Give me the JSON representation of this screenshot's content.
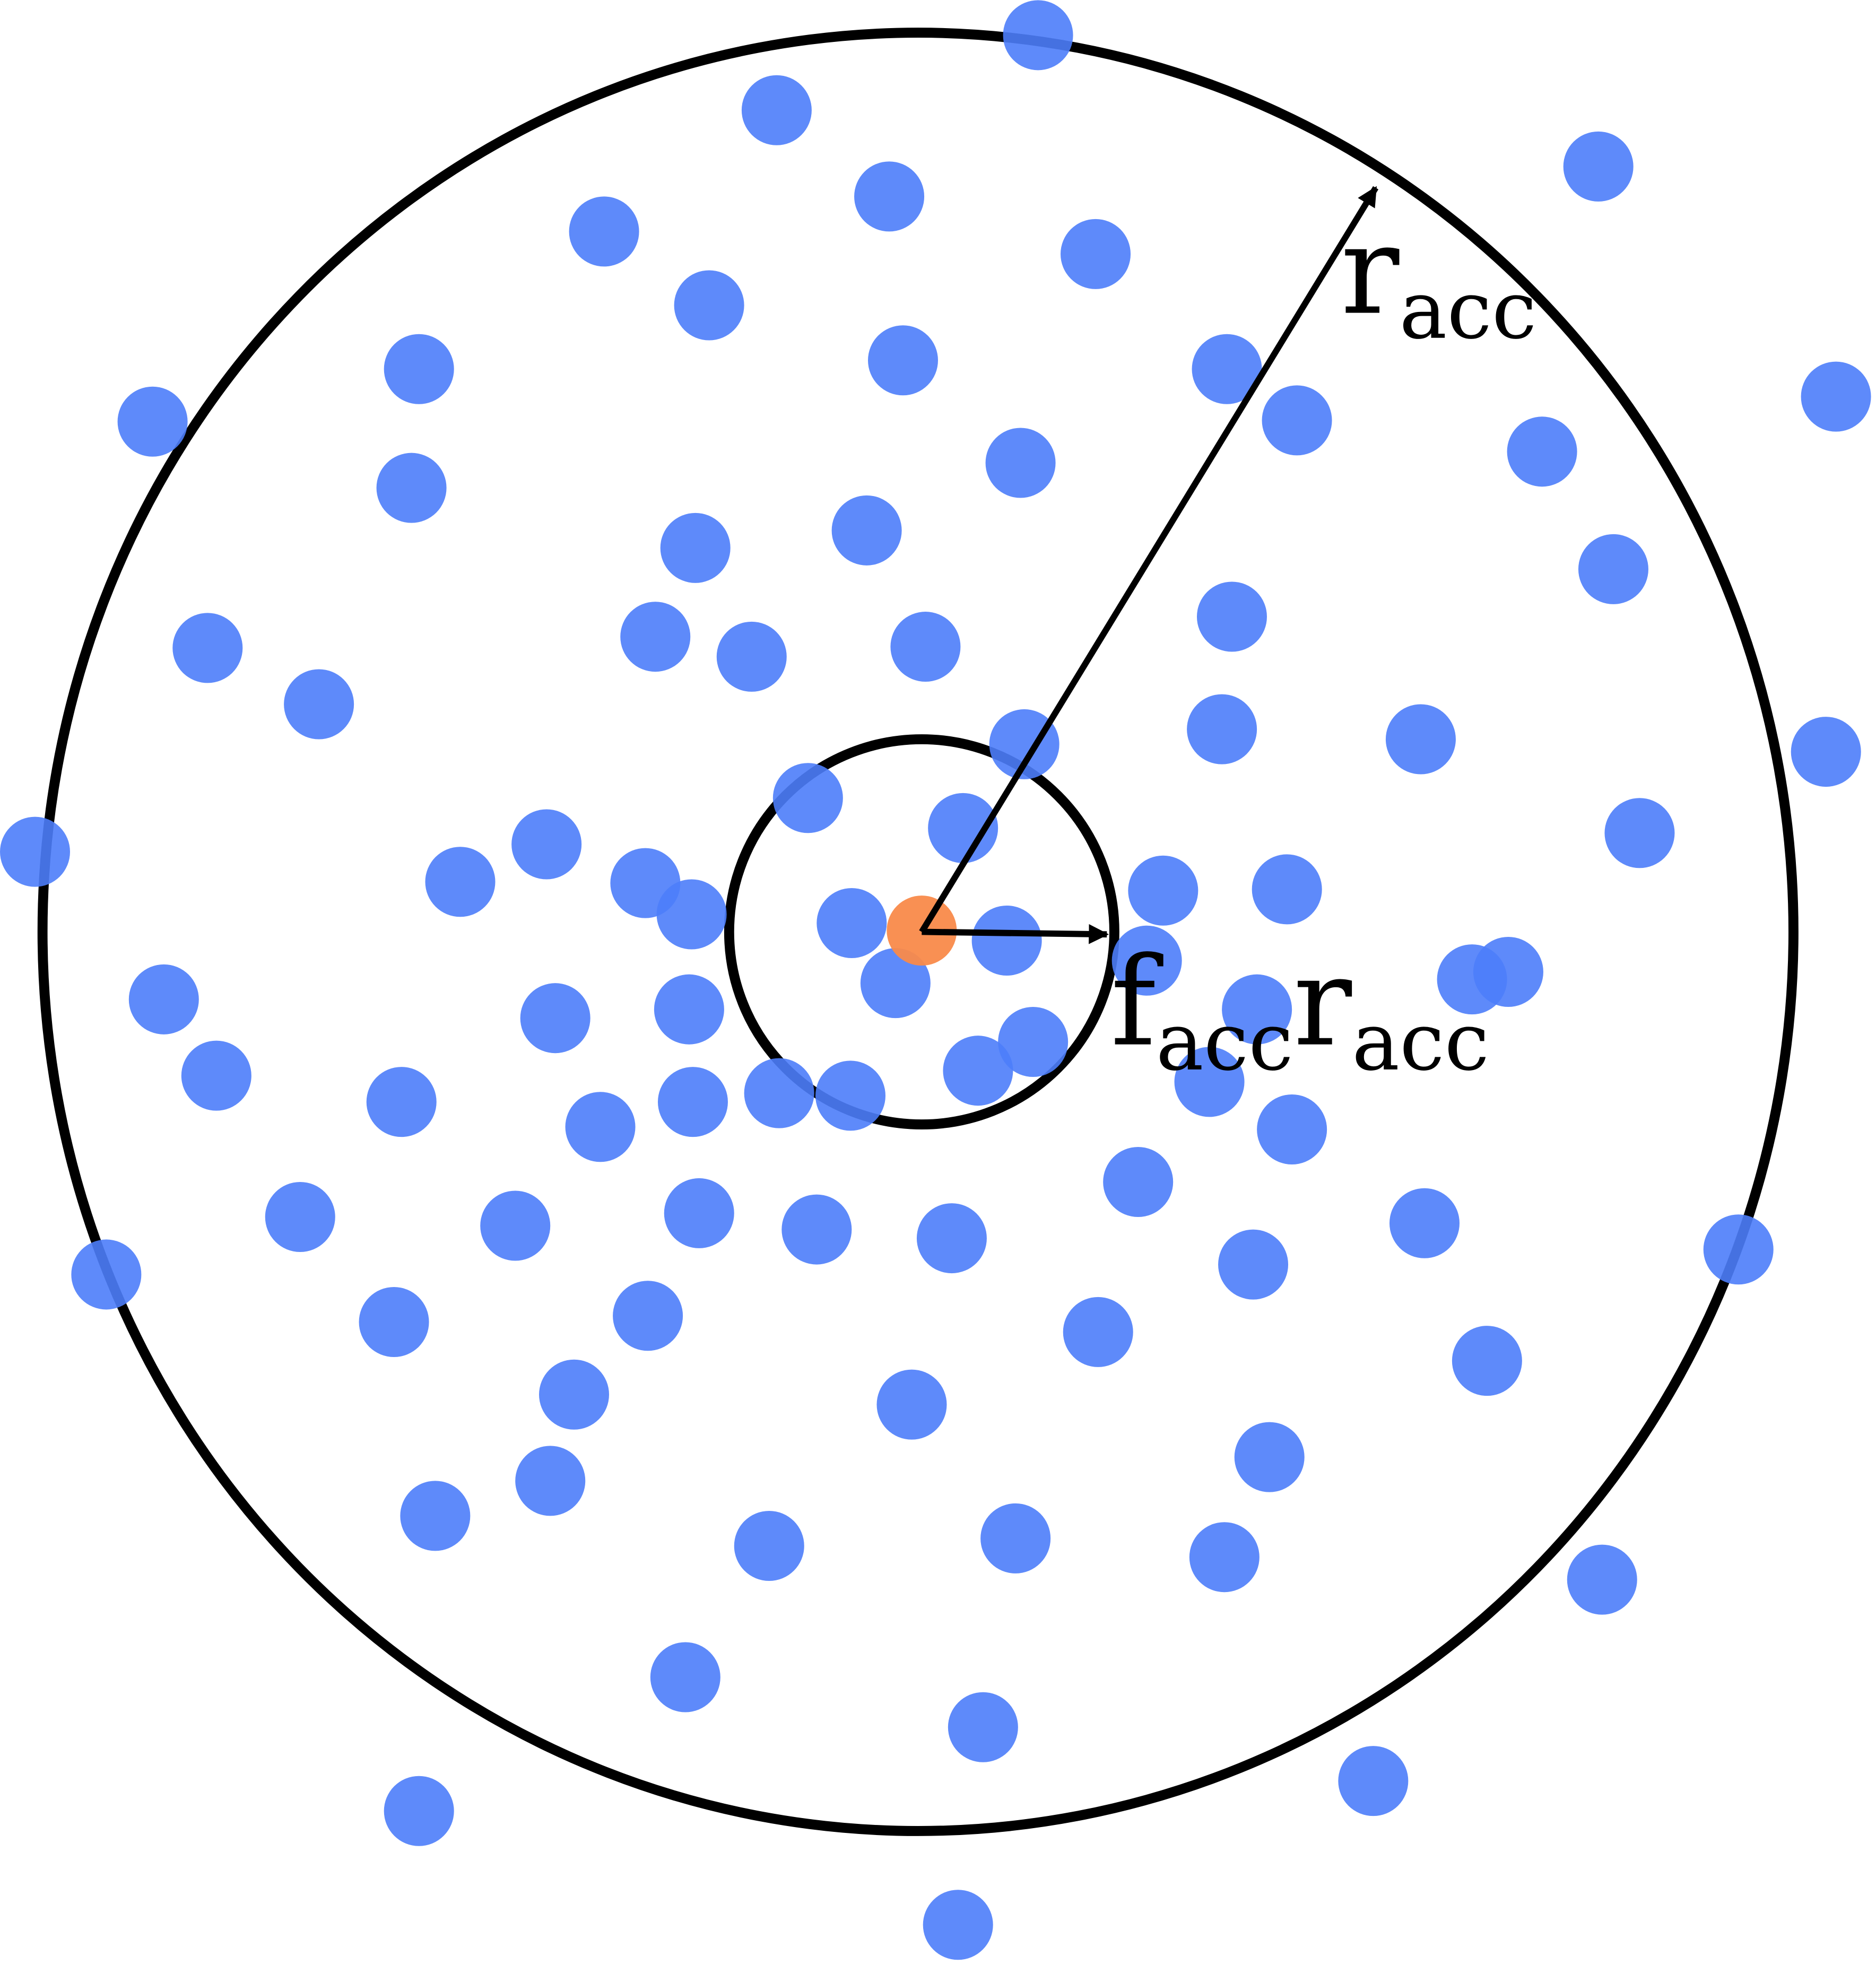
{
  "labels": {
    "outer_radius": {
      "base": "r",
      "sub": "acc"
    },
    "inner_radius": {
      "base1": "f",
      "sub1": "acc",
      "base2": "r",
      "sub2": "acc"
    }
  },
  "colors": {
    "neighbor_particle": "#4d7dfa",
    "center_particle": "#f98a4a",
    "stroke": "#000000"
  }
}
